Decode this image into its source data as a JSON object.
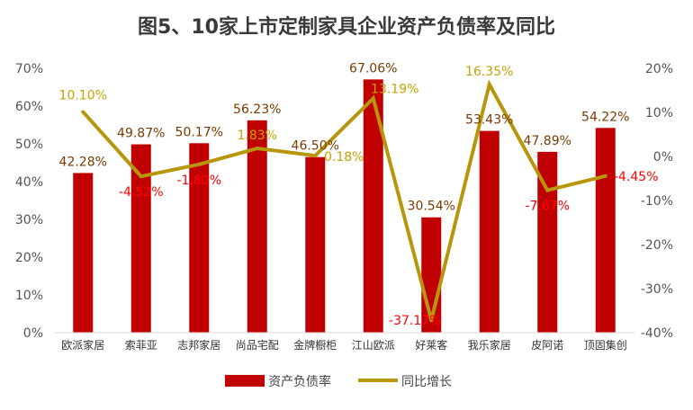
{
  "chart_data": {
    "type": "bar",
    "title": "图5、10家上市定制家具企业资产负债率及同比",
    "categories": [
      "欧派家居",
      "索菲亚",
      "志邦家居",
      "尚品宅配",
      "金牌橱柜",
      "江山欧派",
      "好莱客",
      "我乐家居",
      "皮阿诺",
      "顶固集创"
    ],
    "series": [
      {
        "name": "资产负债率",
        "type": "bar",
        "axis": "left",
        "values": [
          42.28,
          49.87,
          50.17,
          56.23,
          46.5,
          67.06,
          30.54,
          53.43,
          47.89,
          54.22
        ],
        "labels": [
          "42.28%",
          "49.87%",
          "50.17%",
          "56.23%",
          "46.50%",
          "67.06%",
          "30.54%",
          "53.43%",
          "47.89%",
          "54.22%"
        ],
        "color": "#c00000"
      },
      {
        "name": "同比增长",
        "type": "line",
        "axis": "right",
        "values": [
          10.1,
          -4.52,
          -1.8,
          1.83,
          0.18,
          13.19,
          -37.17,
          16.35,
          -7.67,
          -4.45
        ],
        "labels": [
          "10.10%",
          "-4.52%",
          "-1.80%",
          "1.83%",
          "0.18%",
          "13.19%",
          "-37.17%",
          "16.35%",
          "-7.67%",
          "-4.45%"
        ],
        "color": "#b8960c"
      }
    ],
    "ylim_left": [
      0,
      70
    ],
    "yticks_left": [
      "0%",
      "10%",
      "20%",
      "30%",
      "40%",
      "50%",
      "60%",
      "70%"
    ],
    "ylim_right": [
      -40,
      20
    ],
    "yticks_right": [
      "-40%",
      "-30%",
      "-20%",
      "-10%",
      "0%",
      "10%",
      "20%"
    ],
    "grid": false,
    "legend_position": "bottom",
    "colors": {
      "positive_label": "#c9a100",
      "negative_label": "#ff0000",
      "bar_label": "#7a3b00"
    }
  }
}
